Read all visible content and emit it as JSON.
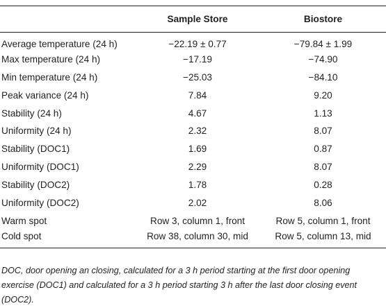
{
  "table": {
    "columns": [
      "Sample Store",
      "Biostore"
    ],
    "rows": [
      [
        "Average temperature (24 h)",
        "−22.19 ± 0.77",
        "−79.84 ± 1.99"
      ],
      [
        "Max temperature (24 h)",
        "−17.19",
        "−74.90"
      ],
      [
        "Min temperature (24 h)",
        "−25.03",
        "−84.10"
      ],
      [
        "Peak variance (24 h)",
        "7.84",
        "9.20"
      ],
      [
        "Stability (24 h)",
        "4.67",
        "1.13"
      ],
      [
        "Uniformity (24 h)",
        "2.32",
        "8.07"
      ],
      [
        "Stability (DOC1)",
        "1.69",
        "0.87"
      ],
      [
        "Uniformity (DOC1)",
        "2.29",
        "8.07"
      ],
      [
        "Stability (DOC2)",
        "1.78",
        "0.28"
      ],
      [
        "Uniformity (DOC2)",
        "2.02",
        "8.06"
      ],
      [
        "Warm spot",
        "Row 3, column 1, front",
        "Row 5, column 1, front"
      ],
      [
        "Cold spot",
        "Row 38, column 30, mid",
        "Row 5, column 13, mid"
      ]
    ]
  },
  "footnote": "DOC, door opening an closing, calculated for a 3 h period starting at the first door opening exercise (DOC1) and calculated for a 3 h period starting 3 h after the last door closing event (DOC2)."
}
